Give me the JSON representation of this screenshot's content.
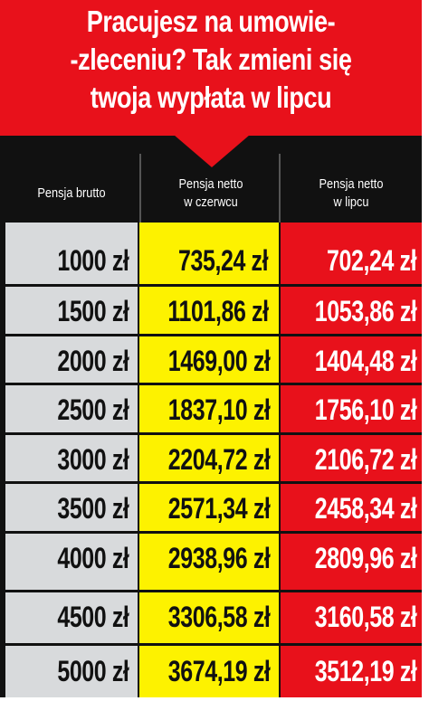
{
  "header": {
    "line1": "Pracujesz na umowie-",
    "line2": "-zleceniu? Tak zmieni się",
    "line3": "twoja wypłata w lipcu"
  },
  "columns": {
    "gross": {
      "line1": "Pensja brutto",
      "line2": ""
    },
    "june": {
      "line1": "Pensja netto",
      "line2": "w czerwcu"
    },
    "july": {
      "line1": "Pensja netto",
      "line2": "w lipcu"
    }
  },
  "rows": [
    {
      "gross": "1000 zł",
      "june": "735,24 zł",
      "july": "702,24 zł"
    },
    {
      "gross": "1500 zł",
      "june": "1101,86 zł",
      "july": "1053,86 zł"
    },
    {
      "gross": "2000 zł",
      "june": "1469,00 zł",
      "july": "1404,48 zł"
    },
    {
      "gross": "2500 zł",
      "june": "1837,10 zł",
      "july": "1756,10 zł"
    },
    {
      "gross": "3000 zł",
      "june": "2204,72 zł",
      "july": "2106,72 zł"
    },
    {
      "gross": "3500 zł",
      "june": "2571,34 zł",
      "july": "2458,34 zł"
    },
    {
      "gross": "4000 zł",
      "june": "2938,96 zł",
      "july": "2809,96 zł"
    },
    {
      "gross": "4500 zł",
      "june": "3306,58 zł",
      "july": "3160,58 zł"
    },
    {
      "gross": "5000 zł",
      "june": "3674,19 zł",
      "july": "3512,19 zł"
    }
  ],
  "colors": {
    "header_red": "#e8111b",
    "column_gray": "#d8dadc",
    "column_yellow": "#fdf200",
    "column_red": "#e8111b",
    "background_dark": "#111111"
  }
}
